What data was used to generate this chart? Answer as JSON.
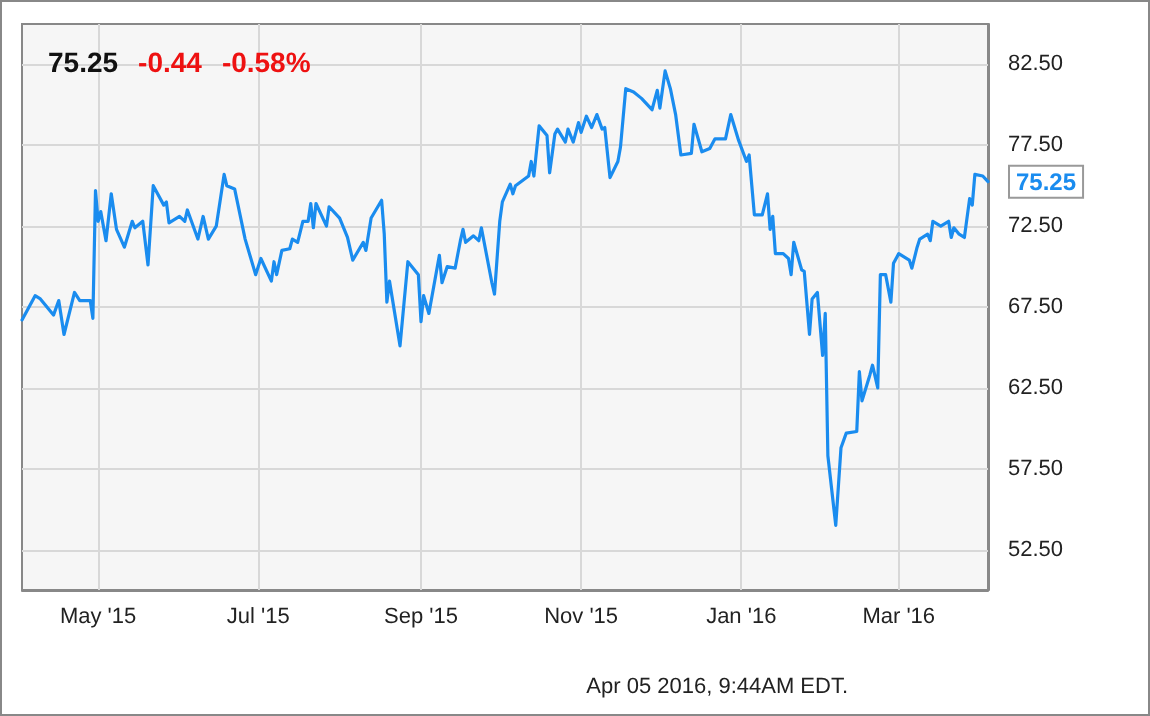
{
  "chart_data": {
    "type": "line",
    "title": "75.25",
    "annotations": [
      "-0.44",
      "-0.58%",
      {
        "text": "75.25",
        "x": "2016-04-04",
        "y": 75.25
      },
      "Apr 05 2016, 9:44AM EDT."
    ],
    "x": [
      "2015-04-02",
      "2015-04-07",
      "2015-04-09",
      "2015-04-14",
      "2015-04-16",
      "2015-04-18",
      "2015-04-22",
      "2015-04-24",
      "2015-04-28",
      "2015-04-29",
      "2015-04-30",
      "2015-05-01",
      "2015-05-02",
      "2015-05-04",
      "2015-05-06",
      "2015-05-08",
      "2015-05-11",
      "2015-05-14",
      "2015-05-15",
      "2015-05-18",
      "2015-05-20",
      "2015-05-22",
      "2015-05-26",
      "2015-05-27",
      "2015-05-28",
      "2015-06-01",
      "2015-06-03",
      "2015-06-04",
      "2015-06-08",
      "2015-06-10",
      "2015-06-12",
      "2015-06-15",
      "2015-06-18",
      "2015-06-19",
      "2015-06-22",
      "2015-06-26",
      "2015-06-30",
      "2015-07-02",
      "2015-07-06",
      "2015-07-07",
      "2015-07-08",
      "2015-07-10",
      "2015-07-13",
      "2015-07-14",
      "2015-07-16",
      "2015-07-18",
      "2015-07-20",
      "2015-07-21",
      "2015-07-22",
      "2015-07-23",
      "2015-07-27",
      "2015-07-28",
      "2015-08-01",
      "2015-08-04",
      "2015-08-06",
      "2015-08-10",
      "2015-08-11",
      "2015-08-13",
      "2015-08-17",
      "2015-08-18",
      "2015-08-19",
      "2015-08-20",
      "2015-08-24",
      "2015-08-27",
      "2015-08-31",
      "2015-09-01",
      "2015-09-02",
      "2015-09-04",
      "2015-09-08",
      "2015-09-09",
      "2015-09-11",
      "2015-09-14",
      "2015-09-16",
      "2015-09-17",
      "2015-09-18",
      "2015-09-21",
      "2015-09-23",
      "2015-09-24",
      "2015-09-28",
      "2015-09-29",
      "2015-10-01",
      "2015-10-02",
      "2015-10-05",
      "2015-10-06",
      "2015-10-07",
      "2015-10-12",
      "2015-10-13",
      "2015-10-14",
      "2015-10-16",
      "2015-10-19",
      "2015-10-20",
      "2015-10-22",
      "2015-10-23",
      "2015-10-26",
      "2015-10-27",
      "2015-10-29",
      "2015-10-31",
      "2015-11-01",
      "2015-11-03",
      "2015-11-05",
      "2015-11-07",
      "2015-11-09",
      "2015-11-10",
      "2015-11-12",
      "2015-11-15",
      "2015-11-16",
      "2015-11-18",
      "2015-11-21",
      "2015-11-24",
      "2015-11-28",
      "2015-11-30",
      "2015-12-01",
      "2015-12-03",
      "2015-12-05",
      "2015-12-07",
      "2015-12-09",
      "2015-12-13",
      "2015-12-14",
      "2015-12-17",
      "2015-12-20",
      "2015-12-22",
      "2015-12-26",
      "2015-12-28",
      "2015-12-31",
      "2016-01-03",
      "2016-01-04",
      "2016-01-06",
      "2016-01-09",
      "2016-01-11",
      "2016-01-12",
      "2016-01-13",
      "2016-01-14",
      "2016-01-17",
      "2016-01-19",
      "2016-01-20",
      "2016-01-21",
      "2016-01-24",
      "2016-01-25",
      "2016-01-27",
      "2016-01-28",
      "2016-01-30",
      "2016-02-01",
      "2016-02-02",
      "2016-02-03",
      "2016-02-06",
      "2016-02-08",
      "2016-02-10",
      "2016-02-14",
      "2016-02-15",
      "2016-02-16",
      "2016-02-19",
      "2016-02-20",
      "2016-02-22",
      "2016-02-23",
      "2016-02-25",
      "2016-02-27",
      "2016-02-28",
      "2016-03-01",
      "2016-03-05",
      "2016-03-06",
      "2016-03-08",
      "2016-03-09",
      "2016-03-12",
      "2016-03-13",
      "2016-03-14",
      "2016-03-17",
      "2016-03-20",
      "2016-03-21",
      "2016-03-22",
      "2016-03-24",
      "2016-03-26",
      "2016-03-28",
      "2016-03-29",
      "2016-03-30",
      "2016-04-02",
      "2016-04-04"
    ],
    "series": [
      {
        "color": "#1a8cef",
        "values": [
          66.7,
          68.2,
          68.0,
          67.0,
          67.9,
          65.8,
          68.4,
          67.9,
          67.9,
          66.8,
          74.7,
          72.8,
          73.4,
          71.6,
          74.5,
          72.3,
          71.2,
          72.8,
          72.4,
          72.8,
          70.1,
          75.0,
          73.8,
          74.0,
          72.7,
          73.1,
          72.8,
          73.5,
          71.7,
          73.1,
          71.7,
          72.5,
          75.7,
          75.0,
          74.8,
          71.7,
          69.5,
          70.5,
          69.1,
          70.3,
          69.5,
          71.0,
          71.1,
          71.7,
          71.5,
          72.8,
          72.8,
          73.9,
          72.4,
          73.9,
          72.5,
          73.7,
          73.0,
          71.8,
          70.4,
          71.5,
          71.0,
          73.0,
          74.1,
          72.0,
          67.8,
          69.1,
          65.1,
          70.3,
          69.5,
          66.6,
          68.2,
          67.1,
          70.7,
          69.0,
          70.0,
          69.9,
          71.6,
          72.3,
          71.5,
          71.9,
          71.6,
          72.4,
          69.0,
          68.3,
          72.8,
          74.0,
          75.1,
          74.5,
          75.0,
          75.6,
          76.5,
          75.6,
          78.7,
          78.1,
          75.8,
          78.2,
          78.5,
          77.7,
          78.5,
          77.7,
          78.9,
          78.3,
          79.3,
          78.6,
          79.4,
          78.5,
          78.6,
          75.5,
          76.5,
          77.4,
          81.0,
          80.8,
          80.4,
          79.7,
          80.9,
          79.8,
          82.1,
          81.0,
          79.4,
          76.9,
          77.0,
          78.8,
          77.1,
          77.3,
          77.9,
          77.9,
          79.4,
          77.8,
          76.5,
          76.9,
          73.2,
          73.2,
          74.5,
          72.3,
          73.1,
          70.8,
          70.8,
          70.5,
          69.5,
          71.5,
          69.8,
          69.7,
          65.8,
          68.0,
          68.4,
          64.5,
          67.1,
          58.3,
          54.0,
          58.8,
          59.7,
          59.8,
          63.5,
          61.7,
          63.3,
          63.9,
          62.5,
          69.5,
          69.5,
          67.8,
          70.2,
          70.8,
          70.4,
          69.9,
          71.2,
          71.7,
          72.0,
          71.6,
          72.8,
          72.5,
          72.8,
          71.8,
          72.4,
          72.0,
          71.8,
          74.2,
          73.8,
          75.7,
          75.6,
          75.25
        ]
      }
    ],
    "xlim": [
      "2015-04-02",
      "2016-04-04"
    ],
    "xticks": [
      {
        "value": "2015-05-01",
        "label": "May '15"
      },
      {
        "value": "2015-07-01",
        "label": "Jul '15"
      },
      {
        "value": "2015-09-01",
        "label": "Sep '15"
      },
      {
        "value": "2015-11-01",
        "label": "Nov '15"
      },
      {
        "value": "2016-01-01",
        "label": "Jan '16"
      },
      {
        "value": "2016-03-01",
        "label": "Mar '16"
      }
    ],
    "ylim": [
      50,
      85
    ],
    "yticks": [
      {
        "value": 52.5,
        "label": "52.50"
      },
      {
        "value": 57.5,
        "label": "57.50"
      },
      {
        "value": 62.5,
        "label": "62.50"
      },
      {
        "value": 67.5,
        "label": "67.50"
      },
      {
        "value": 72.5,
        "label": "72.50"
      },
      {
        "value": 77.5,
        "label": "77.50"
      },
      {
        "value": 82.5,
        "label": "82.50"
      }
    ],
    "grid": true,
    "marker": "none",
    "line_style": "solid"
  }
}
